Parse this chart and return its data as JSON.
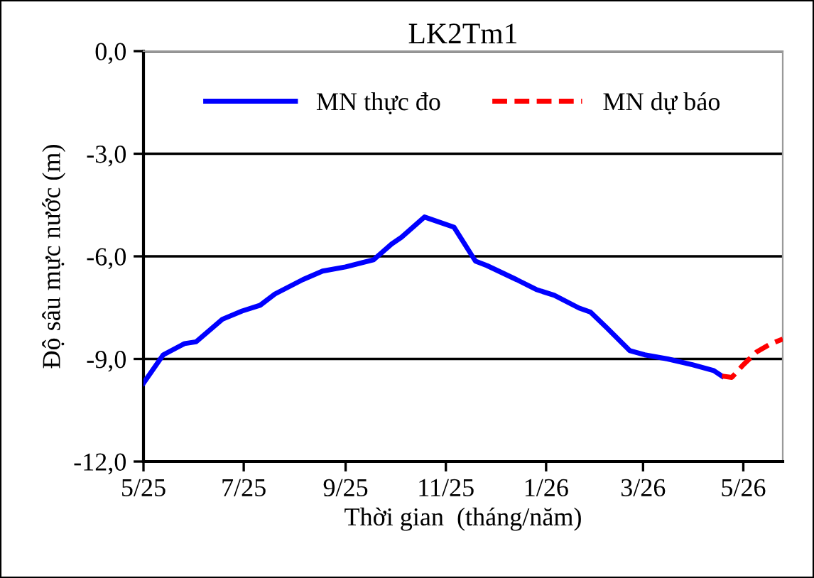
{
  "chart_data": {
    "type": "line",
    "title": "LK2Tm1",
    "xlabel": "Thời gian  (tháng/năm)",
    "ylabel": "Độ sâu mực nước (m)",
    "series": [
      {
        "name": "MN thực đo",
        "color": "#0000ff",
        "line_style": "solid",
        "x": [
          "2025-05-01",
          "2025-05-13",
          "2025-05-26",
          "2025-06-02",
          "2025-06-18",
          "2025-06-30",
          "2025-07-11",
          "2025-07-20",
          "2025-08-06",
          "2025-08-18",
          "2025-09-01",
          "2025-09-18",
          "2025-09-29",
          "2025-10-05",
          "2025-10-19",
          "2025-11-06",
          "2025-11-19",
          "2025-11-26",
          "2025-12-14",
          "2025-12-26",
          "2026-01-06",
          "2026-01-21",
          "2026-01-28",
          "2026-02-07",
          "2026-02-21",
          "2026-03-02",
          "2026-03-16",
          "2026-03-31",
          "2026-04-13",
          "2026-04-18"
        ],
        "values": [
          -9.71,
          -8.88,
          -8.55,
          -8.5,
          -7.84,
          -7.6,
          -7.43,
          -7.1,
          -6.68,
          -6.43,
          -6.31,
          -6.1,
          -5.64,
          -5.44,
          -4.85,
          -5.15,
          -6.14,
          -6.27,
          -6.68,
          -6.97,
          -7.14,
          -7.51,
          -7.63,
          -8.09,
          -8.76,
          -8.88,
          -9.0,
          -9.17,
          -9.34,
          -9.5
        ]
      },
      {
        "name": "MN dự báo",
        "color": "#ff0000",
        "line_style": "dashed",
        "x": [
          "2026-04-18",
          "2026-04-24",
          "2026-05-01",
          "2026-05-09",
          "2026-05-18",
          "2026-05-25"
        ],
        "values": [
          -9.5,
          -9.54,
          -9.17,
          -8.8,
          -8.55,
          -8.42
        ]
      }
    ],
    "xlim": [
      "2025-05-01",
      "2026-05-25"
    ],
    "xticks": [
      {
        "value": "2025-05",
        "label": "5/25"
      },
      {
        "value": "2025-07",
        "label": "7/25"
      },
      {
        "value": "2025-09",
        "label": "9/25"
      },
      {
        "value": "2025-11",
        "label": "11/25"
      },
      {
        "value": "2026-01",
        "label": "1/26"
      },
      {
        "value": "2026-03",
        "label": "3/26"
      },
      {
        "value": "2026-05",
        "label": "5/26"
      }
    ],
    "ylim": [
      -12,
      0
    ],
    "yticks": [
      {
        "value": 0,
        "label": "0,0"
      },
      {
        "value": -3,
        "label": "-3,0"
      },
      {
        "value": -6,
        "label": "-6,0"
      },
      {
        "value": -9,
        "label": "-9,0"
      },
      {
        "value": -12,
        "label": "-12,0"
      }
    ],
    "grid": "y",
    "legend": "top",
    "marker": "none"
  }
}
